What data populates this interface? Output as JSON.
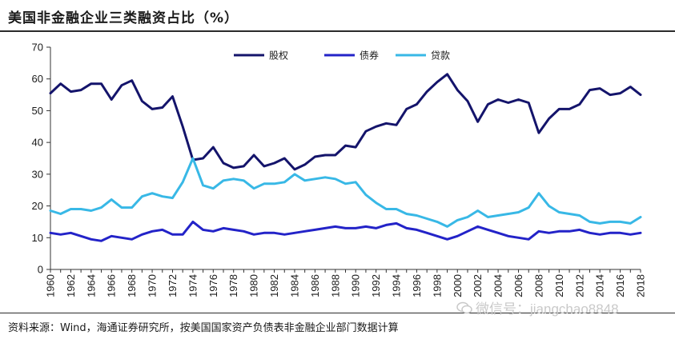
{
  "title": "美国非金融企业三类融资占比（%）",
  "source": "资料来源：Wind，海通证券研究所，按美国国家资产负债表非金融企业部门数据计算",
  "watermark": "微信号：jiangchao8848",
  "colors": {
    "equity": "#14146b",
    "bond": "#2323c8",
    "loan": "#38b8e6"
  },
  "chart_data": {
    "type": "line",
    "title": "美国非金融企业三类融资占比（%）",
    "xlabel": "",
    "ylabel": "",
    "ylim": [
      0,
      70
    ],
    "yticks": [
      0,
      10,
      20,
      30,
      40,
      50,
      60,
      70
    ],
    "xlim": [
      1960,
      2018
    ],
    "xticks": [
      1960,
      1962,
      1964,
      1966,
      1968,
      1970,
      1972,
      1974,
      1976,
      1978,
      1980,
      1982,
      1984,
      1986,
      1988,
      1990,
      1992,
      1994,
      1996,
      1998,
      2000,
      2002,
      2004,
      2006,
      2008,
      2010,
      2012,
      2014,
      2016,
      2018
    ],
    "grid": false,
    "legend": "top-center",
    "x": [
      1960,
      1961,
      1962,
      1963,
      1964,
      1965,
      1966,
      1967,
      1968,
      1969,
      1970,
      1971,
      1972,
      1973,
      1974,
      1975,
      1976,
      1977,
      1978,
      1979,
      1980,
      1981,
      1982,
      1983,
      1984,
      1985,
      1986,
      1987,
      1988,
      1989,
      1990,
      1991,
      1992,
      1993,
      1994,
      1995,
      1996,
      1997,
      1998,
      1999,
      2000,
      2001,
      2002,
      2003,
      2004,
      2005,
      2006,
      2007,
      2008,
      2009,
      2010,
      2011,
      2012,
      2013,
      2014,
      2015,
      2016,
      2017,
      2018
    ],
    "series": [
      {
        "name": "股权",
        "color_key": "equity",
        "values": [
          55.5,
          58.5,
          56,
          56.5,
          58.5,
          58.5,
          53.5,
          58,
          59.5,
          53,
          50.5,
          51,
          54.5,
          45,
          34.5,
          35,
          38.5,
          33.5,
          32,
          32.5,
          36,
          32.5,
          33.5,
          35,
          31.5,
          33,
          35.5,
          36,
          36,
          39,
          38.5,
          43.5,
          45,
          46,
          45.5,
          50.5,
          52,
          56,
          59,
          61.5,
          56.5,
          53,
          46.5,
          52,
          53.5,
          52.5,
          53.5,
          52.5,
          43,
          47.5,
          50.5,
          50.5,
          52,
          56.5,
          57,
          55,
          55.5,
          57.5,
          55
        ]
      },
      {
        "name": "债券",
        "color_key": "bond",
        "values": [
          11.5,
          11,
          11.5,
          10.5,
          9.5,
          9,
          10.5,
          10,
          9.5,
          11,
          12,
          12.5,
          11,
          11,
          15,
          12.5,
          12,
          13,
          12.5,
          12,
          11,
          11.5,
          11.5,
          11,
          11.5,
          12,
          12.5,
          13,
          13.5,
          13,
          13,
          13.5,
          13,
          14,
          14.5,
          13,
          12.5,
          11.5,
          10.5,
          9.5,
          10.5,
          12,
          13.5,
          12.5,
          11.5,
          10.5,
          10,
          9.5,
          12,
          11.5,
          12,
          12,
          12.5,
          11.5,
          11,
          11.5,
          11.5,
          11,
          11.5
        ]
      },
      {
        "name": "贷款",
        "color_key": "loan",
        "values": [
          18.5,
          17.5,
          19,
          19,
          18.5,
          19.5,
          22,
          19.5,
          19.5,
          23,
          24,
          23,
          22.5,
          27.5,
          35,
          26.5,
          25.5,
          28,
          28.5,
          28,
          25.5,
          27,
          27,
          27.5,
          30,
          28,
          28.5,
          29,
          28.5,
          27,
          27.5,
          23.5,
          21,
          19,
          19,
          17.5,
          17,
          16,
          15,
          13.5,
          15.5,
          16.5,
          18.5,
          16.5,
          17,
          17.5,
          18,
          19.5,
          24,
          20,
          18,
          17.5,
          17,
          15,
          14.5,
          15,
          15,
          14.5,
          16.5
        ]
      }
    ]
  }
}
